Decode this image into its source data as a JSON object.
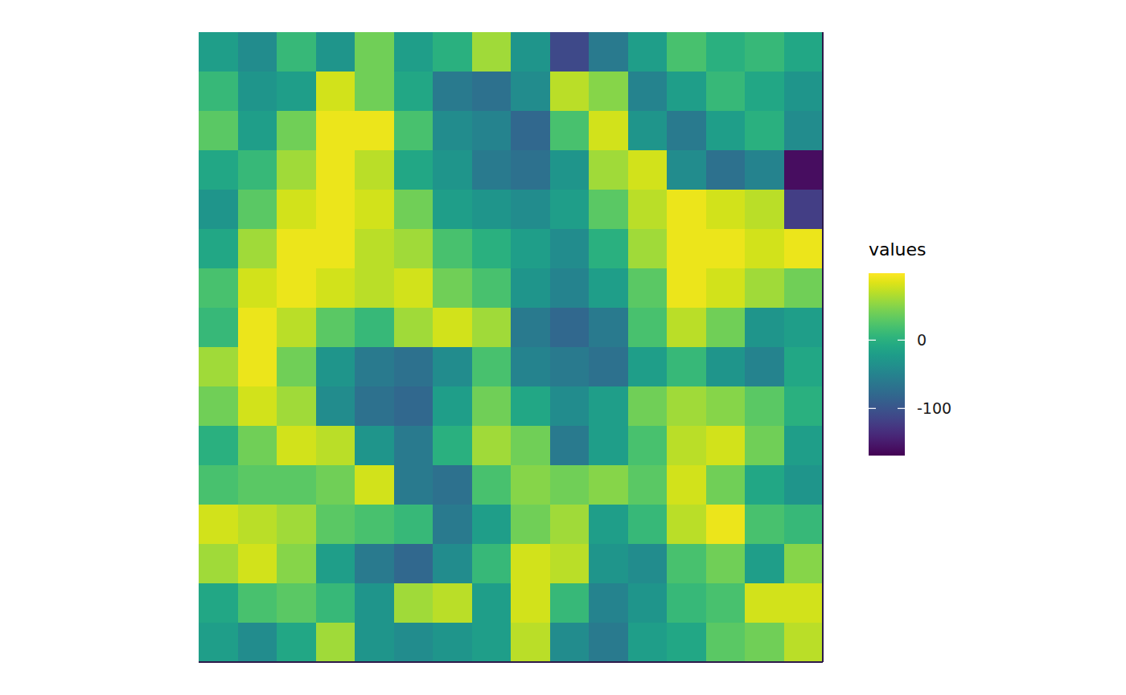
{
  "chart_data": {
    "type": "heatmap",
    "tick_labels": false,
    "color": "viridis",
    "values": [
      [
        -20,
        -40,
        10,
        -30,
        40,
        -20,
        0,
        60,
        -30,
        -110,
        -60,
        -20,
        20,
        0,
        10,
        -10
      ],
      [
        10,
        -30,
        -20,
        80,
        40,
        -10,
        -60,
        -70,
        -40,
        70,
        50,
        -50,
        -20,
        10,
        -10,
        -30
      ],
      [
        30,
        -20,
        40,
        90,
        90,
        20,
        -40,
        -50,
        -80,
        20,
        80,
        -30,
        -60,
        -20,
        0,
        -40
      ],
      [
        -10,
        10,
        60,
        90,
        70,
        -10,
        -30,
        -60,
        -70,
        -30,
        60,
        80,
        -40,
        -70,
        -50,
        -160
      ],
      [
        -30,
        30,
        80,
        90,
        80,
        40,
        -20,
        -30,
        -40,
        -20,
        30,
        70,
        90,
        80,
        70,
        -120
      ],
      [
        -10,
        60,
        90,
        90,
        70,
        60,
        20,
        0,
        -20,
        -40,
        0,
        60,
        90,
        90,
        80,
        90
      ],
      [
        20,
        80,
        90,
        80,
        70,
        80,
        40,
        20,
        -30,
        -50,
        -20,
        30,
        90,
        80,
        60,
        40
      ],
      [
        10,
        90,
        70,
        30,
        10,
        60,
        80,
        60,
        -60,
        -80,
        -60,
        20,
        70,
        40,
        -30,
        -20
      ],
      [
        60,
        90,
        40,
        -30,
        -60,
        -70,
        -40,
        20,
        -50,
        -60,
        -70,
        -20,
        10,
        -30,
        -50,
        -10
      ],
      [
        40,
        80,
        60,
        -40,
        -70,
        -80,
        -20,
        40,
        -10,
        -40,
        -20,
        40,
        60,
        50,
        30,
        0
      ],
      [
        0,
        40,
        80,
        70,
        -30,
        -60,
        0,
        60,
        40,
        -60,
        -20,
        20,
        70,
        80,
        40,
        -20
      ],
      [
        20,
        30,
        30,
        40,
        80,
        -60,
        -70,
        20,
        50,
        40,
        50,
        30,
        80,
        40,
        -10,
        -30
      ],
      [
        80,
        70,
        60,
        30,
        20,
        10,
        -60,
        -20,
        40,
        60,
        -20,
        10,
        70,
        90,
        20,
        10
      ],
      [
        60,
        80,
        50,
        -20,
        -60,
        -80,
        -40,
        10,
        80,
        70,
        -30,
        -40,
        20,
        40,
        -20,
        50
      ],
      [
        -10,
        20,
        30,
        10,
        -30,
        60,
        70,
        -20,
        80,
        10,
        -50,
        -30,
        10,
        20,
        80,
        80
      ],
      [
        -20,
        -40,
        -10,
        60,
        -30,
        -40,
        -30,
        -20,
        70,
        -40,
        -60,
        -20,
        -10,
        30,
        40,
        70
      ]
    ],
    "colorbar": {
      "title": "values",
      "lim": [
        -169,
        98
      ],
      "ticks": [
        -100,
        0
      ]
    }
  }
}
